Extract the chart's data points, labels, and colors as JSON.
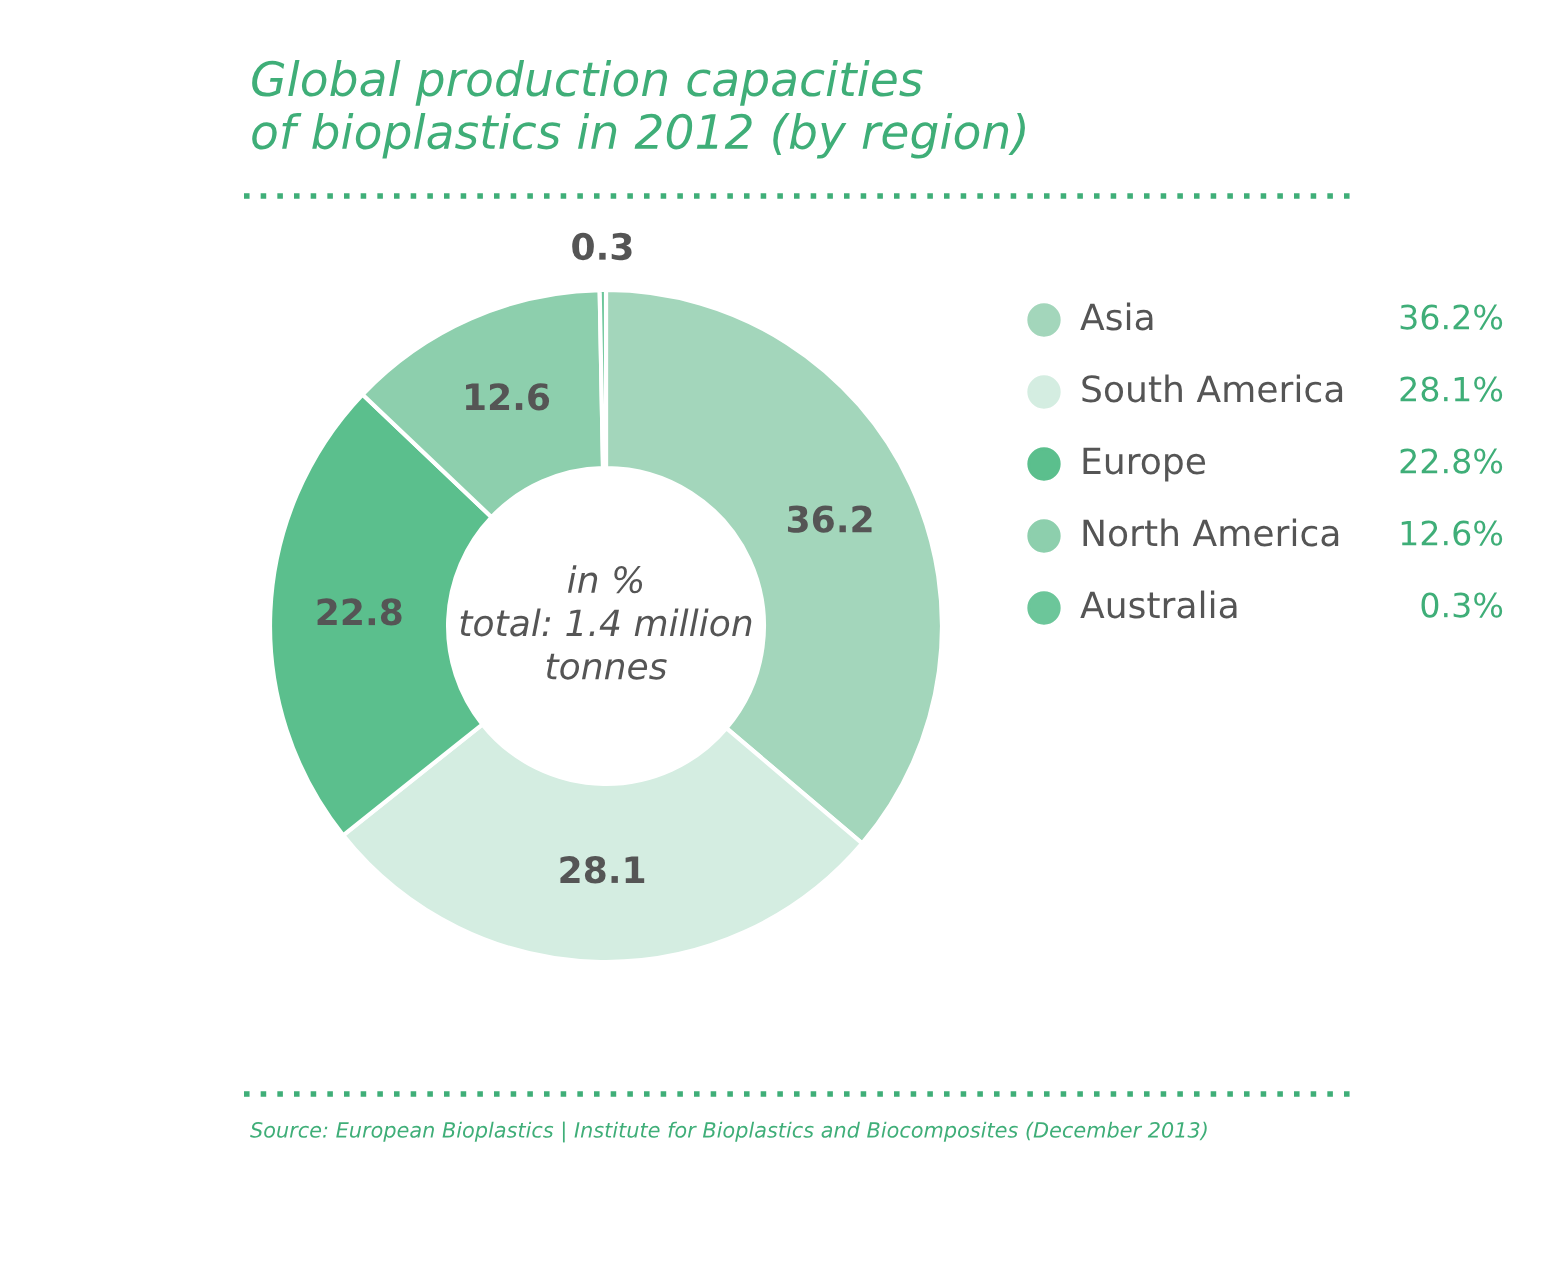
{
  "chart_data": {
    "type": "donut",
    "title": "Global production capacities\nof bioplastics in 2012 (by region)",
    "categories": [
      "Asia",
      "South America",
      "Europe",
      "North America",
      "Australia"
    ],
    "values": [
      36.2,
      28.1,
      22.8,
      12.6,
      0.3
    ],
    "colors": [
      "#a3d6bb",
      "#d4ede1",
      "#5bbf8d",
      "#8dcfad",
      "#6cc69a"
    ],
    "value_labels": [
      "36.2",
      "28.1",
      "22.8",
      "12.6",
      "0.3"
    ],
    "legend": "right",
    "annotations": [
      "in %\ntotal: 1.4 million\ntonnes",
      "Source: European Bioplastics | Institute for Bioplastics and Biocomposites (December 2013)",
      "36.2%",
      "28.1%",
      "22.8%",
      "12.6%",
      "0.3%"
    ]
  }
}
